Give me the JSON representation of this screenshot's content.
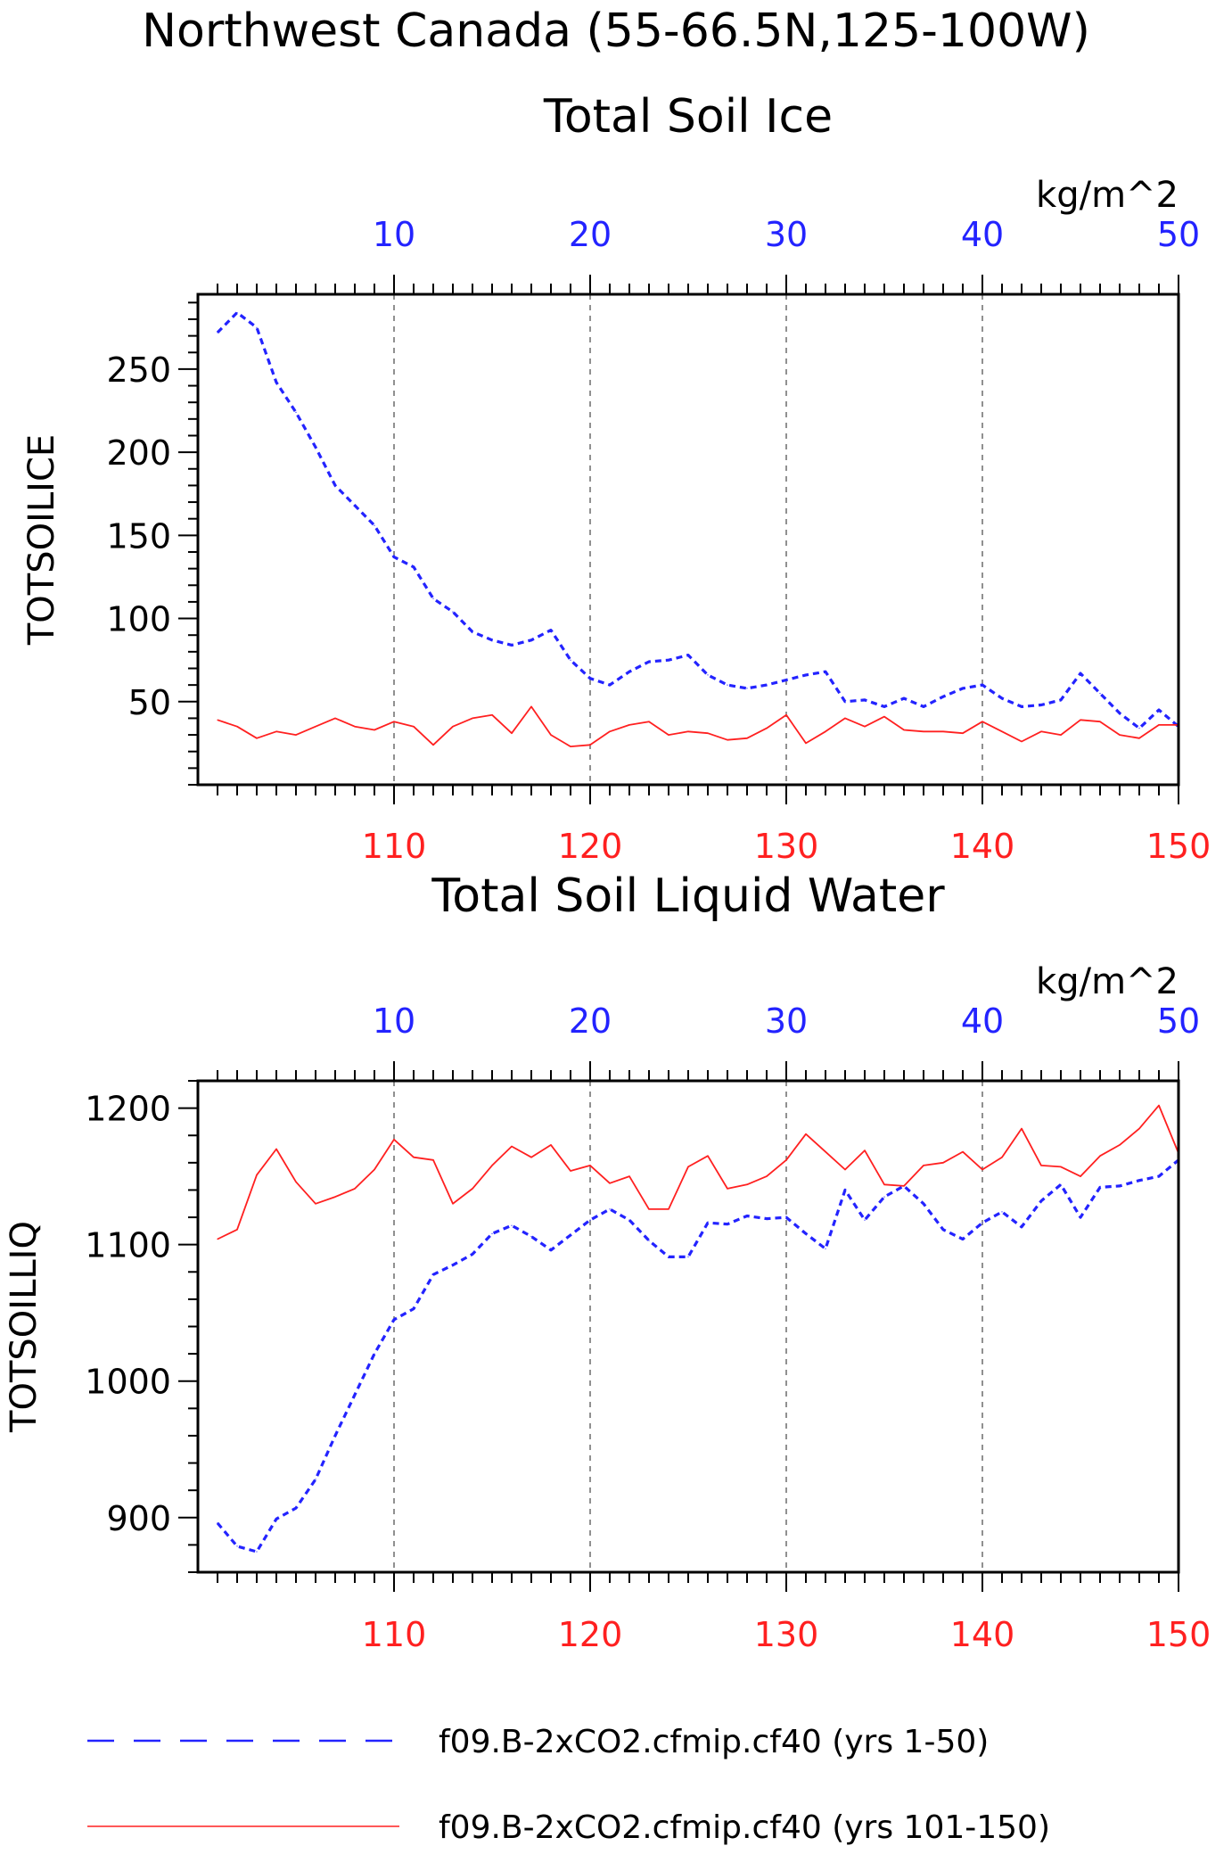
{
  "title": "Northwest Canada (55-66.5N,125-100W)",
  "colors": {
    "series1": "#2323ff",
    "series2": "#ff2020",
    "axis": "#000000"
  },
  "chart_data": [
    {
      "type": "line",
      "title": "Total Soil Ice",
      "ylabel": "TOTSOILICE",
      "units": "kg/m^2",
      "ylim": [
        0,
        295
      ],
      "yticks": [
        50,
        100,
        150,
        200,
        250
      ],
      "top_axis": {
        "range": [
          1,
          50
        ],
        "ticks": [
          10,
          20,
          30,
          40,
          50
        ],
        "color": "#2323ff"
      },
      "bottom_axis": {
        "range": [
          101,
          150
        ],
        "ticks": [
          110,
          120,
          130,
          140,
          150
        ],
        "color": "#ff2020"
      },
      "grid": "vertical dashed at top ticks",
      "series": [
        {
          "name": "f09.B-2xCO2.cfmip.cf40 (yrs 1-50)",
          "axis": "top",
          "style": "dashed",
          "color": "#2323ff",
          "x": [
            1,
            2,
            3,
            4,
            5,
            6,
            7,
            8,
            9,
            10,
            11,
            12,
            13,
            14,
            15,
            16,
            17,
            18,
            19,
            20,
            21,
            22,
            23,
            24,
            25,
            26,
            27,
            28,
            29,
            30,
            31,
            32,
            33,
            34,
            35,
            36,
            37,
            38,
            39,
            40,
            41,
            42,
            43,
            44,
            45,
            46,
            47,
            48,
            49,
            50
          ],
          "y": [
            272,
            284,
            275,
            242,
            224,
            203,
            180,
            168,
            156,
            137,
            131,
            112,
            104,
            92,
            87,
            84,
            87,
            93,
            75,
            64,
            60,
            68,
            74,
            75,
            78,
            66,
            60,
            58,
            60,
            63,
            66,
            68,
            50,
            51,
            47,
            52,
            47,
            53,
            58,
            60,
            52,
            47,
            48,
            51,
            67,
            55,
            43,
            34,
            45,
            35
          ]
        },
        {
          "name": "f09.B-2xCO2.cfmip.cf40 (yrs 101-150)",
          "axis": "bottom",
          "style": "solid",
          "color": "#ff2020",
          "x": [
            101,
            102,
            103,
            104,
            105,
            106,
            107,
            108,
            109,
            110,
            111,
            112,
            113,
            114,
            115,
            116,
            117,
            118,
            119,
            120,
            121,
            122,
            123,
            124,
            125,
            126,
            127,
            128,
            129,
            130,
            131,
            132,
            133,
            134,
            135,
            136,
            137,
            138,
            139,
            140,
            141,
            142,
            143,
            144,
            145,
            146,
            147,
            148,
            149,
            150
          ],
          "y": [
            39,
            35,
            28,
            32,
            30,
            35,
            40,
            35,
            33,
            38,
            35,
            24,
            35,
            40,
            42,
            31,
            47,
            30,
            23,
            24,
            32,
            36,
            38,
            30,
            32,
            31,
            27,
            28,
            34,
            42,
            25,
            32,
            40,
            35,
            41,
            33,
            32,
            32,
            31,
            38,
            32,
            26,
            32,
            30,
            39,
            38,
            30,
            28,
            36,
            36
          ]
        }
      ]
    },
    {
      "type": "line",
      "title": "Total Soil Liquid Water",
      "ylabel": "TOTSOILLIQ",
      "units": "kg/m^2",
      "ylim": [
        860,
        1220
      ],
      "yticks": [
        900,
        1000,
        1100,
        1200
      ],
      "top_axis": {
        "range": [
          1,
          50
        ],
        "ticks": [
          10,
          20,
          30,
          40,
          50
        ],
        "color": "#2323ff"
      },
      "bottom_axis": {
        "range": [
          101,
          150
        ],
        "ticks": [
          110,
          120,
          130,
          140,
          150
        ],
        "color": "#ff2020"
      },
      "grid": "vertical dashed at top ticks",
      "series": [
        {
          "name": "f09.B-2xCO2.cfmip.cf40 (yrs 1-50)",
          "axis": "top",
          "style": "dashed",
          "color": "#2323ff",
          "x": [
            1,
            2,
            3,
            4,
            5,
            6,
            7,
            8,
            9,
            10,
            11,
            12,
            13,
            14,
            15,
            16,
            17,
            18,
            19,
            20,
            21,
            22,
            23,
            24,
            25,
            26,
            27,
            28,
            29,
            30,
            31,
            32,
            33,
            34,
            35,
            36,
            37,
            38,
            39,
            40,
            41,
            42,
            43,
            44,
            45,
            46,
            47,
            48,
            49,
            50
          ],
          "y": [
            896,
            879,
            875,
            899,
            907,
            928,
            960,
            990,
            1020,
            1045,
            1053,
            1078,
            1085,
            1093,
            1108,
            1114,
            1106,
            1096,
            1107,
            1118,
            1126,
            1118,
            1103,
            1091,
            1091,
            1116,
            1115,
            1121,
            1119,
            1120,
            1108,
            1097,
            1140,
            1118,
            1135,
            1143,
            1130,
            1111,
            1104,
            1116,
            1124,
            1113,
            1132,
            1144,
            1120,
            1142,
            1143,
            1147,
            1150,
            1162
          ]
        },
        {
          "name": "f09.B-2xCO2.cfmip.cf40 (yrs 101-150)",
          "axis": "bottom",
          "style": "solid",
          "color": "#ff2020",
          "x": [
            101,
            102,
            103,
            104,
            105,
            106,
            107,
            108,
            109,
            110,
            111,
            112,
            113,
            114,
            115,
            116,
            117,
            118,
            119,
            120,
            121,
            122,
            123,
            124,
            125,
            126,
            127,
            128,
            129,
            130,
            131,
            132,
            133,
            134,
            135,
            136,
            137,
            138,
            139,
            140,
            141,
            142,
            143,
            144,
            145,
            146,
            147,
            148,
            149,
            150
          ],
          "y": [
            1104,
            1111,
            1151,
            1170,
            1146,
            1130,
            1135,
            1141,
            1155,
            1177,
            1164,
            1162,
            1130,
            1141,
            1158,
            1172,
            1164,
            1173,
            1154,
            1158,
            1145,
            1150,
            1126,
            1126,
            1157,
            1165,
            1141,
            1144,
            1150,
            1162,
            1181,
            1168,
            1155,
            1169,
            1144,
            1143,
            1158,
            1160,
            1168,
            1155,
            1164,
            1185,
            1158,
            1157,
            1150,
            1165,
            1173,
            1185,
            1202,
            1167
          ]
        }
      ]
    }
  ],
  "legend": {
    "placement": "bottom",
    "entries": [
      {
        "label": "f09.B-2xCO2.cfmip.cf40 (yrs 1-50)",
        "style": "dashed",
        "color": "#2323ff"
      },
      {
        "label": "f09.B-2xCO2.cfmip.cf40 (yrs 101-150)",
        "style": "solid",
        "color": "#ff2020"
      }
    ]
  }
}
